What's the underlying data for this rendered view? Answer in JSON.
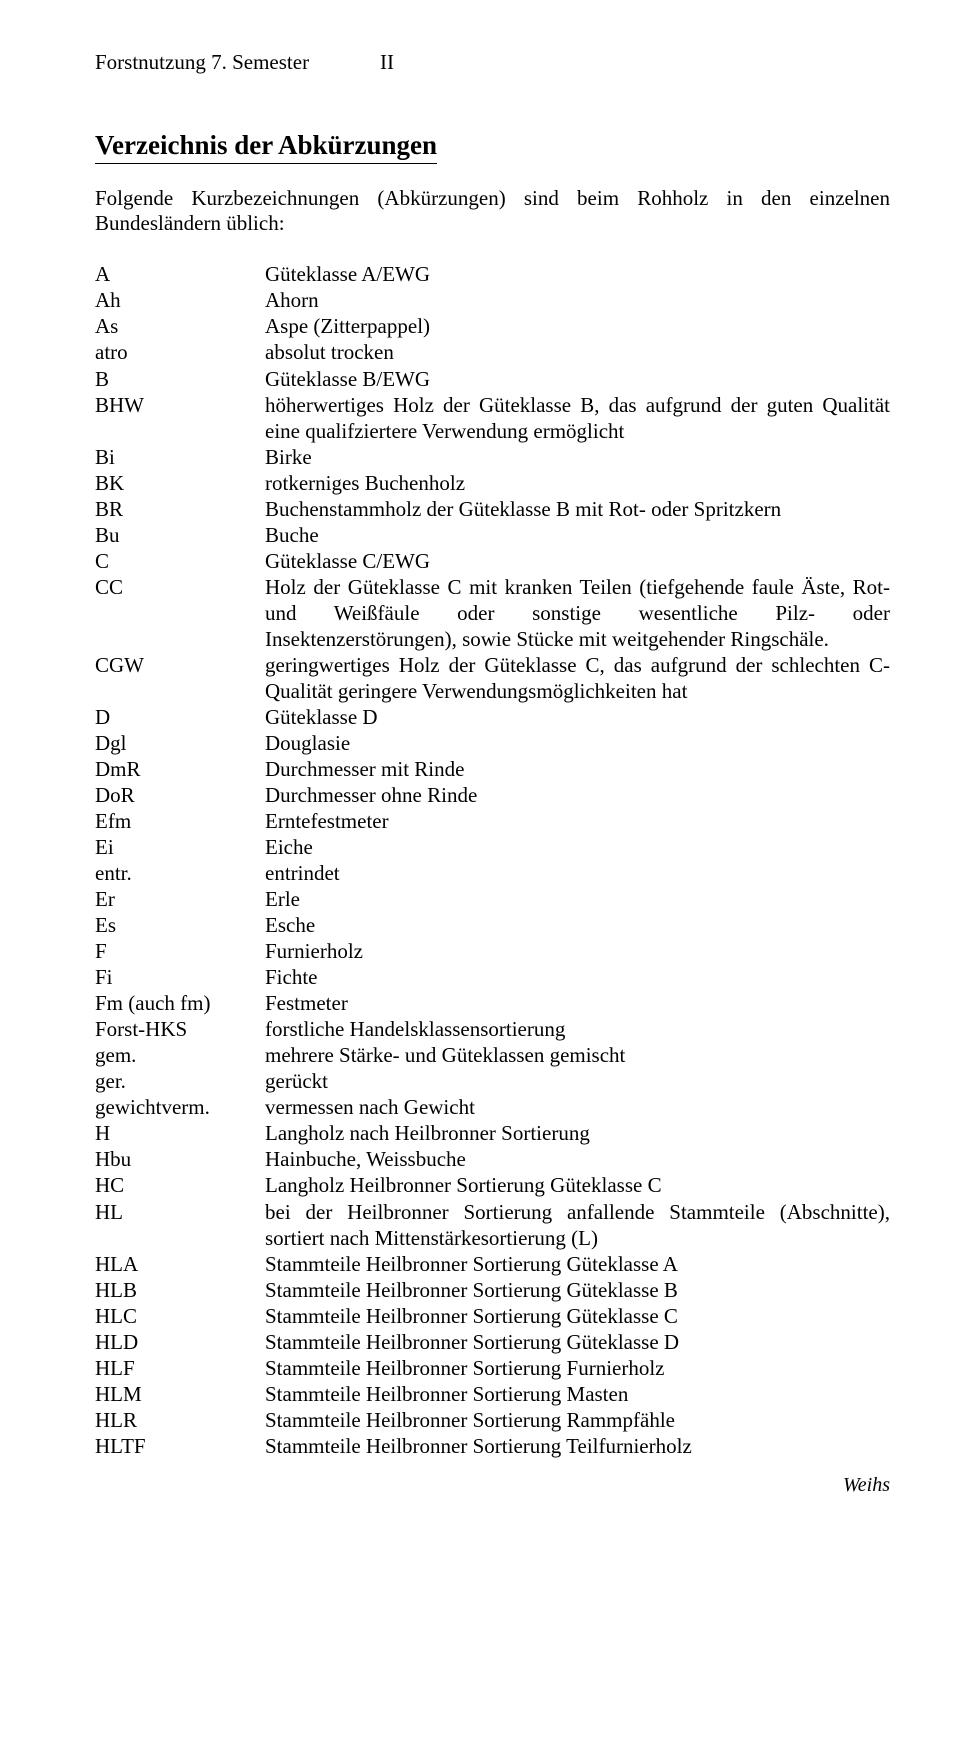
{
  "header": {
    "left": "Forstnutzung 7. Semester",
    "right": "II"
  },
  "title": "Verzeichnis der Abkürzungen",
  "intro": "Folgende Kurzbezeichnungen (Abkürzungen) sind beim Rohholz in den einzelnen Bundesländern üblich:",
  "entries": [
    {
      "abbr": "A",
      "def": "Güteklasse A/EWG"
    },
    {
      "abbr": "Ah",
      "def": "Ahorn"
    },
    {
      "abbr": "As",
      "def": "Aspe (Zitterpappel)"
    },
    {
      "abbr": "atro",
      "def": "absolut trocken"
    },
    {
      "abbr": "B",
      "def": "Güteklasse B/EWG"
    },
    {
      "abbr": "BHW",
      "def": "höherwertiges Holz der Güteklasse B, das aufgrund der guten Qualität eine qualifziertere Verwendung ermöglicht"
    },
    {
      "abbr": "Bi",
      "def": "Birke"
    },
    {
      "abbr": "BK",
      "def": "rotkerniges Buchenholz"
    },
    {
      "abbr": "BR",
      "def": "Buchenstammholz der Güteklasse B mit Rot- oder Spritzkern"
    },
    {
      "abbr": "Bu",
      "def": "Buche"
    },
    {
      "abbr": "C",
      "def": "Güteklasse C/EWG"
    },
    {
      "abbr": "CC",
      "def": "Holz der Güteklasse C mit kranken Teilen (tiefgehende faule Äste, Rot- und Weißfäule oder sonstige wesentliche Pilz- oder Insektenzerstörungen), sowie Stücke mit weitgehender Ringschäle."
    },
    {
      "abbr": "CGW",
      "def": "geringwertiges Holz der Güteklasse C, das aufgrund der schlechten C-Qualität geringere Verwendungsmöglichkeiten hat"
    },
    {
      "abbr": "D",
      "def": "Güteklasse D"
    },
    {
      "abbr": "Dgl",
      "def": "Douglasie"
    },
    {
      "abbr": "DmR",
      "def": "Durchmesser mit Rinde"
    },
    {
      "abbr": "DoR",
      "def": "Durchmesser ohne Rinde"
    },
    {
      "abbr": "Efm",
      "def": "Erntefestmeter"
    },
    {
      "abbr": "Ei",
      "def": "Eiche"
    },
    {
      "abbr": "entr.",
      "def": "entrindet"
    },
    {
      "abbr": "Er",
      "def": "Erle"
    },
    {
      "abbr": "Es",
      "def": "Esche"
    },
    {
      "abbr": "F",
      "def": "Furnierholz"
    },
    {
      "abbr": "Fi",
      "def": "Fichte"
    },
    {
      "abbr": "Fm (auch fm)",
      "def": "Festmeter"
    },
    {
      "abbr": "Forst-HKS",
      "def": "forstliche Handelsklassensortierung"
    },
    {
      "abbr": "gem.",
      "def": "mehrere Stärke- und Güteklassen gemischt"
    },
    {
      "abbr": "ger.",
      "def": "gerückt"
    },
    {
      "abbr": "gewichtverm.",
      "def": "vermessen nach Gewicht"
    },
    {
      "abbr": "H",
      "def": "Langholz nach Heilbronner Sortierung"
    },
    {
      "abbr": "Hbu",
      "def": "Hainbuche, Weissbuche"
    },
    {
      "abbr": "HC",
      "def": "Langholz Heilbronner Sortierung Güteklasse C"
    },
    {
      "abbr": "HL",
      "def": "bei der Heilbronner Sortierung anfallende Stammteile (Abschnitte), sortiert nach Mittenstärkesortierung (L)"
    },
    {
      "abbr": "HLA",
      "def": "Stammteile Heilbronner Sortierung Güteklasse A"
    },
    {
      "abbr": "HLB",
      "def": "Stammteile Heilbronner Sortierung Güteklasse B"
    },
    {
      "abbr": "HLC",
      "def": "Stammteile Heilbronner Sortierung Güteklasse C"
    },
    {
      "abbr": "HLD",
      "def": "Stammteile Heilbronner Sortierung Güteklasse D"
    },
    {
      "abbr": "HLF",
      "def": "Stammteile Heilbronner Sortierung Furnierholz"
    },
    {
      "abbr": "HLM",
      "def": "Stammteile Heilbronner Sortierung Masten"
    },
    {
      "abbr": "HLR",
      "def": "Stammteile Heilbronner Sortierung Rammpfähle"
    },
    {
      "abbr": "HLTF",
      "def": "Stammteile Heilbronner Sortierung Teilfurnierholz"
    }
  ],
  "footer": "Weihs"
}
